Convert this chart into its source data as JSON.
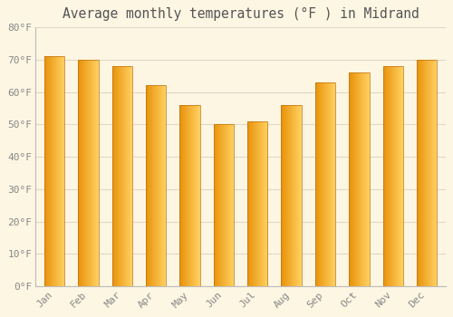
{
  "title": "Average monthly temperatures (°F ) in Midrand",
  "months": [
    "Jan",
    "Feb",
    "Mar",
    "Apr",
    "May",
    "Jun",
    "Jul",
    "Aug",
    "Sep",
    "Oct",
    "Nov",
    "Dec"
  ],
  "values": [
    71,
    70,
    68,
    62,
    56,
    50,
    51,
    56,
    63,
    66,
    68,
    70
  ],
  "bar_color_left": "#E8920A",
  "bar_color_right": "#FFD060",
  "background_color": "#FDF6E3",
  "plot_bg_color": "#FDF6E3",
  "grid_color": "#E0D8C8",
  "tick_label_color": "#888888",
  "title_color": "#555555",
  "ylim": [
    0,
    80
  ],
  "yticks": [
    0,
    10,
    20,
    30,
    40,
    50,
    60,
    70,
    80
  ],
  "title_fontsize": 10.5,
  "tick_fontsize": 8,
  "bar_width": 0.6,
  "gradient_steps": 40
}
